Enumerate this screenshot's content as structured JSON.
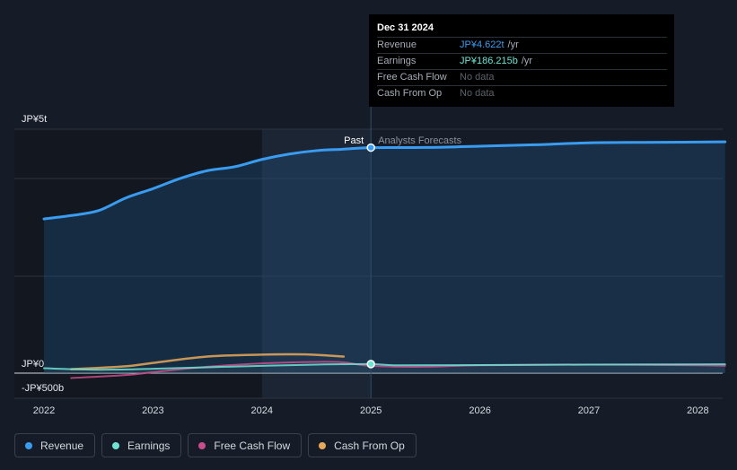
{
  "tooltip": {
    "date": "Dec 31 2024",
    "rows": [
      {
        "label": "Revenue",
        "value": "JP¥4.622t",
        "unit": "/yr",
        "color": "#3a9cf0"
      },
      {
        "label": "Earnings",
        "value": "JP¥186.215b",
        "unit": "/yr",
        "color": "#6fe3d3"
      },
      {
        "label": "Free Cash Flow",
        "value": "No data",
        "unit": "",
        "color": "#5d626b"
      },
      {
        "label": "Cash From Op",
        "value": "No data",
        "unit": "",
        "color": "#5d626b"
      }
    ]
  },
  "chart_data": {
    "type": "line",
    "y_tick_labels": [
      "JP¥5t",
      "JP¥0",
      "-JP¥500b"
    ],
    "x_tick_labels": [
      "2022",
      "2023",
      "2024",
      "2025",
      "2026",
      "2027",
      "2028"
    ],
    "ylim": [
      -500,
      5000
    ],
    "y_unit": "JP¥ billions",
    "past_label": "Past",
    "forecast_label": "Analysts Forecasts",
    "divider_x": 2025.0,
    "shaded_start_x": 2024.0,
    "series": [
      {
        "name": "Revenue",
        "color": "#3a9cf0",
        "x": [
          2022.0,
          2022.25,
          2022.5,
          2022.75,
          2023.0,
          2023.25,
          2023.5,
          2023.75,
          2024.0,
          2024.25,
          2024.5,
          2024.75,
          2025.0,
          2025.5,
          2026.0,
          2026.5,
          2027.0,
          2027.5,
          2028.0,
          2028.25
        ],
        "y": [
          3160,
          3230,
          3330,
          3590,
          3780,
          3990,
          4150,
          4230,
          4380,
          4490,
          4560,
          4590,
          4622,
          4625,
          4650,
          4680,
          4720,
          4730,
          4735,
          4740
        ]
      },
      {
        "name": "Earnings",
        "color": "#6fe3d3",
        "x": [
          2022.0,
          2022.5,
          2023.0,
          2023.5,
          2024.0,
          2024.5,
          2025.0,
          2025.25,
          2026.0,
          2027.0,
          2028.0,
          2028.25
        ],
        "y": [
          100,
          70,
          90,
          120,
          150,
          175,
          186,
          160,
          165,
          175,
          180,
          182
        ]
      },
      {
        "name": "Free Cash Flow",
        "color": "#c94d8c",
        "x": [
          2022.25,
          2022.75,
          2023.0,
          2023.5,
          2024.0,
          2024.5,
          2024.75,
          2025.0,
          2025.5,
          2026.0,
          2027.0,
          2028.0,
          2028.25
        ],
        "y": [
          -100,
          -40,
          20,
          130,
          200,
          230,
          220,
          150,
          130,
          160,
          175,
          160,
          150
        ]
      },
      {
        "name": "Cash From Op",
        "color": "#e7a85a",
        "x": [
          2022.25,
          2022.75,
          2023.0,
          2023.5,
          2024.0,
          2024.3,
          2024.5,
          2024.75
        ],
        "y": [
          80,
          140,
          210,
          340,
          380,
          385,
          375,
          340
        ]
      }
    ],
    "grid": true,
    "legend_placement": "bottom-left"
  },
  "legend": [
    {
      "label": "Revenue",
      "color": "#3a9cf0"
    },
    {
      "label": "Earnings",
      "color": "#6fe3d3"
    },
    {
      "label": "Free Cash Flow",
      "color": "#c94d8c"
    },
    {
      "label": "Cash From Op",
      "color": "#e7a85a"
    }
  ]
}
